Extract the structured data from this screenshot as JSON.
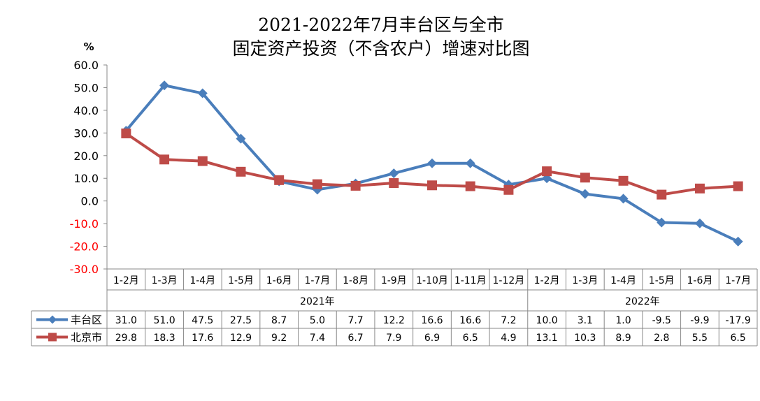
{
  "chart_data": {
    "type": "line",
    "title_line1": "2021-2022年7月丰台区与全市",
    "title_line2": "固定资产投资（不含农户）增速对比图",
    "ylabel": "%",
    "ylim": [
      -30,
      60
    ],
    "yticks": [
      "60.0",
      "50.0",
      "40.0",
      "30.0",
      "20.0",
      "10.0",
      "0.0",
      "-10.0",
      "-20.0",
      "-30.0"
    ],
    "ytick_values": [
      60,
      50,
      40,
      30,
      20,
      10,
      0,
      -10,
      -20,
      -30
    ],
    "categories": [
      "1-2月",
      "1-3月",
      "1-4月",
      "1-5月",
      "1-6月",
      "1-7月",
      "1-8月",
      "1-9月",
      "1-10月",
      "1-11月",
      "1-12月",
      "1-2月",
      "1-3月",
      "1-4月",
      "1-5月",
      "1-6月",
      "1-7月"
    ],
    "groups": [
      {
        "label": "2021年",
        "count": 11
      },
      {
        "label": "2022年",
        "count": 6
      }
    ],
    "series": [
      {
        "name": "丰台区",
        "color": "#4a7ebb",
        "marker": "diamond",
        "values": [
          31.0,
          51.0,
          47.5,
          27.5,
          8.7,
          5.0,
          7.7,
          12.2,
          16.6,
          16.6,
          7.2,
          10.0,
          3.1,
          1.0,
          -9.5,
          -9.9,
          -17.9
        ],
        "labels": [
          "31.0",
          "51.0",
          "47.5",
          "27.5",
          "8.7",
          "5.0",
          "7.7",
          "12.2",
          "16.6",
          "16.6",
          "7.2",
          "10.0",
          "3.1",
          "1.0",
          "-9.5",
          "-9.9",
          "-17.9"
        ]
      },
      {
        "name": "北京市",
        "color": "#be4b48",
        "marker": "square",
        "values": [
          29.8,
          18.3,
          17.6,
          12.9,
          9.2,
          7.4,
          6.7,
          7.9,
          6.9,
          6.5,
          4.9,
          13.1,
          10.3,
          8.9,
          2.8,
          5.5,
          6.5
        ],
        "labels": [
          "29.8",
          "18.3",
          "17.6",
          "12.9",
          "9.2",
          "7.4",
          "6.7",
          "7.9",
          "6.9",
          "6.5",
          "4.9",
          "13.1",
          "10.3",
          "8.9",
          "2.8",
          "5.5",
          "6.5"
        ]
      }
    ],
    "negative_tick_color": "#ff0000",
    "grid": false,
    "legend": "data-table"
  }
}
